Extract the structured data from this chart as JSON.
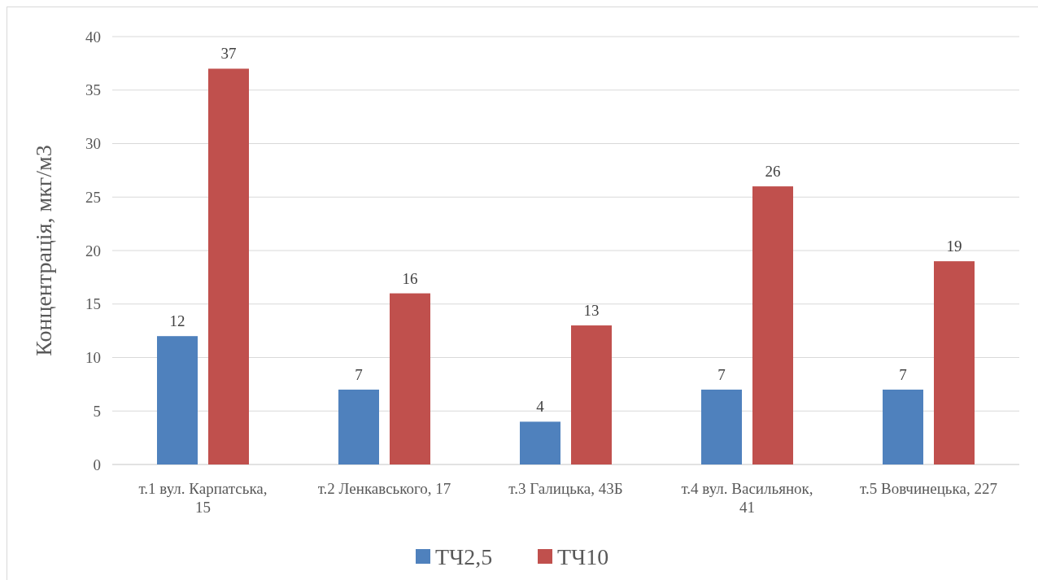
{
  "chart_data": {
    "type": "bar",
    "ylabel": "Концентрація, мкг/м3",
    "categories": [
      "т.1 вул. Карпатська, 15",
      "т.2 Ленкавського, 17",
      "т.3 Галицька, 43Б",
      "т.4 вул. Васильянок, 41",
      "т.5 Вовчинецька, 227"
    ],
    "series": [
      {
        "name": "ТЧ2,5",
        "color": "#4f81bd",
        "values": [
          12,
          7,
          4,
          7,
          7
        ]
      },
      {
        "name": "ТЧ10",
        "color": "#c0504d",
        "values": [
          37,
          16,
          13,
          26,
          19
        ]
      }
    ],
    "ylim": [
      0,
      40
    ],
    "yticks": [
      0,
      5,
      10,
      15,
      20,
      25,
      30,
      35,
      40
    ],
    "grid": "y",
    "legend": "bottom",
    "data_labels": true
  }
}
